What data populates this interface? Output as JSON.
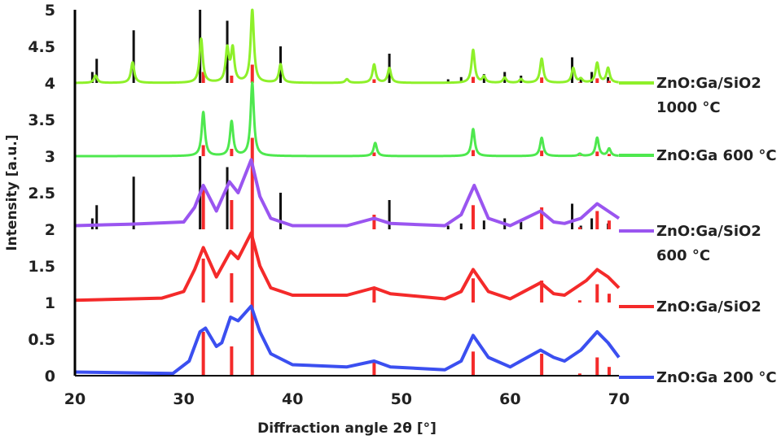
{
  "chart_data": {
    "type": "line",
    "xlabel": "Diffraction angle 2θ [°]",
    "ylabel": "Intensity [a.u.]",
    "xlim": [
      20,
      70
    ],
    "ylim": [
      0,
      5
    ],
    "xticks": [
      "20",
      "30",
      "40",
      "50",
      "60",
      "70"
    ],
    "yticks": [
      "0",
      "0.5",
      "1",
      "1.5",
      "2",
      "2.5",
      "3",
      "3.5",
      "4",
      "4.5",
      "5"
    ],
    "grid": false,
    "legend_placement": "right",
    "series": [
      {
        "name": "ZnO:Ga 200 °C",
        "color": "#3b4ff0",
        "points": [
          [
            20,
            0.05
          ],
          [
            29,
            0.03
          ],
          [
            30.5,
            0.2
          ],
          [
            31.5,
            0.6
          ],
          [
            32,
            0.65
          ],
          [
            33,
            0.4
          ],
          [
            33.5,
            0.45
          ],
          [
            34.3,
            0.8
          ],
          [
            35,
            0.75
          ],
          [
            36.2,
            0.95
          ],
          [
            37,
            0.6
          ],
          [
            38,
            0.3
          ],
          [
            40,
            0.15
          ],
          [
            45,
            0.12
          ],
          [
            47.5,
            0.2
          ],
          [
            49,
            0.12
          ],
          [
            54,
            0.08
          ],
          [
            55.5,
            0.2
          ],
          [
            56.6,
            0.55
          ],
          [
            58,
            0.25
          ],
          [
            60,
            0.12
          ],
          [
            62.8,
            0.35
          ],
          [
            64,
            0.25
          ],
          [
            65,
            0.2
          ],
          [
            66.5,
            0.35
          ],
          [
            68,
            0.6
          ],
          [
            69,
            0.45
          ],
          [
            70,
            0.25
          ]
        ]
      },
      {
        "name": "ZnO:Ga/SiO2",
        "color": "#f42a2a",
        "points": [
          [
            20,
            1.03
          ],
          [
            28,
            1.06
          ],
          [
            30,
            1.15
          ],
          [
            31,
            1.45
          ],
          [
            31.8,
            1.75
          ],
          [
            33,
            1.35
          ],
          [
            34.3,
            1.7
          ],
          [
            35,
            1.6
          ],
          [
            36.2,
            1.95
          ],
          [
            37,
            1.5
          ],
          [
            38,
            1.2
          ],
          [
            40,
            1.1
          ],
          [
            45,
            1.1
          ],
          [
            47.5,
            1.2
          ],
          [
            49,
            1.12
          ],
          [
            54,
            1.05
          ],
          [
            55.5,
            1.15
          ],
          [
            56.6,
            1.45
          ],
          [
            58,
            1.15
          ],
          [
            60,
            1.05
          ],
          [
            62.8,
            1.27
          ],
          [
            64,
            1.12
          ],
          [
            65,
            1.1
          ],
          [
            67,
            1.3
          ],
          [
            68,
            1.45
          ],
          [
            69,
            1.35
          ],
          [
            70,
            1.2
          ]
        ]
      },
      {
        "name": "ZnO:Ga/SiO2 600 °C",
        "label_lines": [
          "ZnO:Ga/SiO2",
          "600 °C"
        ],
        "color": "#9a55f0",
        "points": [
          [
            20,
            2.05
          ],
          [
            25,
            2.07
          ],
          [
            30,
            2.1
          ],
          [
            31,
            2.3
          ],
          [
            31.8,
            2.6
          ],
          [
            33,
            2.25
          ],
          [
            34.2,
            2.65
          ],
          [
            35,
            2.5
          ],
          [
            36.2,
            2.95
          ],
          [
            37,
            2.45
          ],
          [
            38,
            2.15
          ],
          [
            40,
            2.05
          ],
          [
            45,
            2.05
          ],
          [
            47.5,
            2.15
          ],
          [
            49,
            2.08
          ],
          [
            54,
            2.05
          ],
          [
            55.5,
            2.2
          ],
          [
            56.7,
            2.6
          ],
          [
            58,
            2.15
          ],
          [
            60,
            2.05
          ],
          [
            62.8,
            2.25
          ],
          [
            64,
            2.1
          ],
          [
            65,
            2.08
          ],
          [
            66.5,
            2.15
          ],
          [
            68,
            2.35
          ],
          [
            69,
            2.25
          ],
          [
            70,
            2.15
          ]
        ]
      },
      {
        "name": "ZnO:Ga 600 °C",
        "color": "#4ee84e",
        "baseline": 3.0,
        "peaks": [
          [
            31.8,
            3.6
          ],
          [
            34.4,
            3.47
          ],
          [
            36.3,
            4.0
          ],
          [
            47.6,
            3.18
          ],
          [
            56.6,
            3.37
          ],
          [
            62.9,
            3.25
          ],
          [
            66.4,
            3.03
          ],
          [
            68.0,
            3.25
          ],
          [
            69.1,
            3.1
          ]
        ]
      },
      {
        "name": "ZnO:Ga/SiO2 1000 °C",
        "label_lines": [
          "ZnO:Ga/SiO2",
          "1000 °C"
        ],
        "color": "#8ef02a",
        "baseline": 4.0,
        "peaks": [
          [
            21.9,
            4.1
          ],
          [
            25.3,
            4.28
          ],
          [
            31.6,
            4.6
          ],
          [
            34.0,
            4.45
          ],
          [
            34.5,
            4.45
          ],
          [
            36.3,
            5.0
          ],
          [
            38.9,
            4.25
          ],
          [
            45.0,
            4.05
          ],
          [
            47.5,
            4.25
          ],
          [
            48.9,
            4.2
          ],
          [
            56.6,
            4.45
          ],
          [
            57.6,
            4.08
          ],
          [
            59.5,
            4.07
          ],
          [
            61.0,
            4.05
          ],
          [
            62.9,
            4.33
          ],
          [
            65.8,
            4.2
          ],
          [
            66.5,
            4.05
          ],
          [
            68.0,
            4.27
          ],
          [
            69.0,
            4.2
          ]
        ]
      }
    ],
    "reference_red": {
      "color": "#f42a2a",
      "baselines": [
        0,
        1,
        2,
        3,
        4
      ],
      "sticks": [
        [
          31.8,
          0.6
        ],
        [
          34.4,
          0.4
        ],
        [
          36.3,
          1.0
        ],
        [
          47.5,
          0.2
        ],
        [
          56.6,
          0.33
        ],
        [
          62.9,
          0.3
        ],
        [
          66.4,
          0.03
        ],
        [
          68.0,
          0.25
        ],
        [
          69.1,
          0.12
        ]
      ]
    },
    "reference_black": {
      "color": "#111111",
      "baselines": [
        2,
        4
      ],
      "sticks": [
        [
          21.6,
          0.15
        ],
        [
          22.0,
          0.33
        ],
        [
          25.4,
          0.72
        ],
        [
          31.5,
          1.0
        ],
        [
          34.0,
          0.85
        ],
        [
          38.9,
          0.5
        ],
        [
          48.9,
          0.4
        ],
        [
          54.3,
          0.05
        ],
        [
          55.5,
          0.08
        ],
        [
          57.6,
          0.12
        ],
        [
          59.5,
          0.15
        ],
        [
          61.0,
          0.1
        ],
        [
          65.7,
          0.35
        ],
        [
          66.5,
          0.05
        ],
        [
          67.5,
          0.15
        ],
        [
          69.0,
          0.08
        ]
      ]
    }
  }
}
